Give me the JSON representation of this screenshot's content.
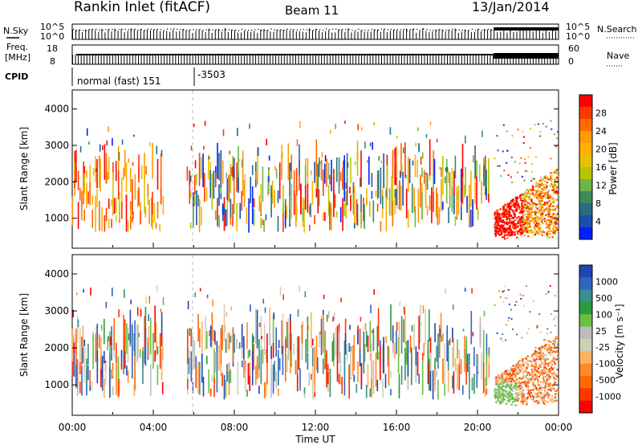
{
  "header": {
    "station": "Rankin Inlet (fitACF)",
    "beam": "Beam 11",
    "date": "13/Jan/2014"
  },
  "status_panel": {
    "left_top_label": "N.Sky",
    "left_top_ticks": [
      "10^5",
      "10^0"
    ],
    "right_top_ticks": [
      "10^5",
      "10^0"
    ],
    "right_top_label": "N.Search",
    "freq_label_1": "Freq.",
    "freq_label_2": "[MHz]",
    "freq_ticks": [
      "18",
      "8"
    ],
    "nave_ticks": [
      "60",
      "0"
    ],
    "nave_label": "Nave",
    "cpid_label": "CPID",
    "cpid_mode_1": "normal (fast) 151",
    "cpid_mode_2": "-3503"
  },
  "chart_data": [
    {
      "type": "heatmap",
      "name": "power",
      "ylabel": "Slant Range [km]",
      "ylim": [
        200,
        4500
      ],
      "yticks": [
        "1000",
        "2000",
        "3000",
        "4000"
      ],
      "xlim": [
        "00:00",
        "24:00"
      ],
      "colorbar": {
        "label": "Power [dB]",
        "ticks": [
          "28",
          "24",
          "20",
          "16",
          "12",
          "8",
          "4"
        ],
        "colors": [
          "#ff0000",
          "#ff3a00",
          "#ff6a00",
          "#ff9a00",
          "#ffb000",
          "#e6c200",
          "#b8c400",
          "#6cb548",
          "#3d8a5c",
          "#2a6b82",
          "#1a4fb0",
          "#0022ff"
        ]
      }
    },
    {
      "type": "heatmap",
      "name": "velocity",
      "ylabel": "Slant Range [km]",
      "ylim": [
        200,
        4500
      ],
      "yticks": [
        "1000",
        "2000",
        "3000",
        "4000"
      ],
      "xlim": [
        "00:00",
        "24:00"
      ],
      "xticks": [
        "00:00",
        "04:00",
        "08:00",
        "12:00",
        "16:00",
        "20:00",
        "00:00"
      ],
      "xlabel": "Time UT",
      "colorbar": {
        "label": "Velocity [m s⁻¹]",
        "ticks": [
          "1000",
          "500",
          "100",
          "25",
          "-25",
          "-100",
          "-500",
          "-1000"
        ],
        "colors": [
          "#2046b0",
          "#3066c0",
          "#3a8e8e",
          "#2e9a40",
          "#6cc040",
          "#bdbdbd",
          "#cfcfb8",
          "#ffb060",
          "#ff8a2a",
          "#ff6a00",
          "#ff3800",
          "#ff0000"
        ]
      }
    }
  ]
}
